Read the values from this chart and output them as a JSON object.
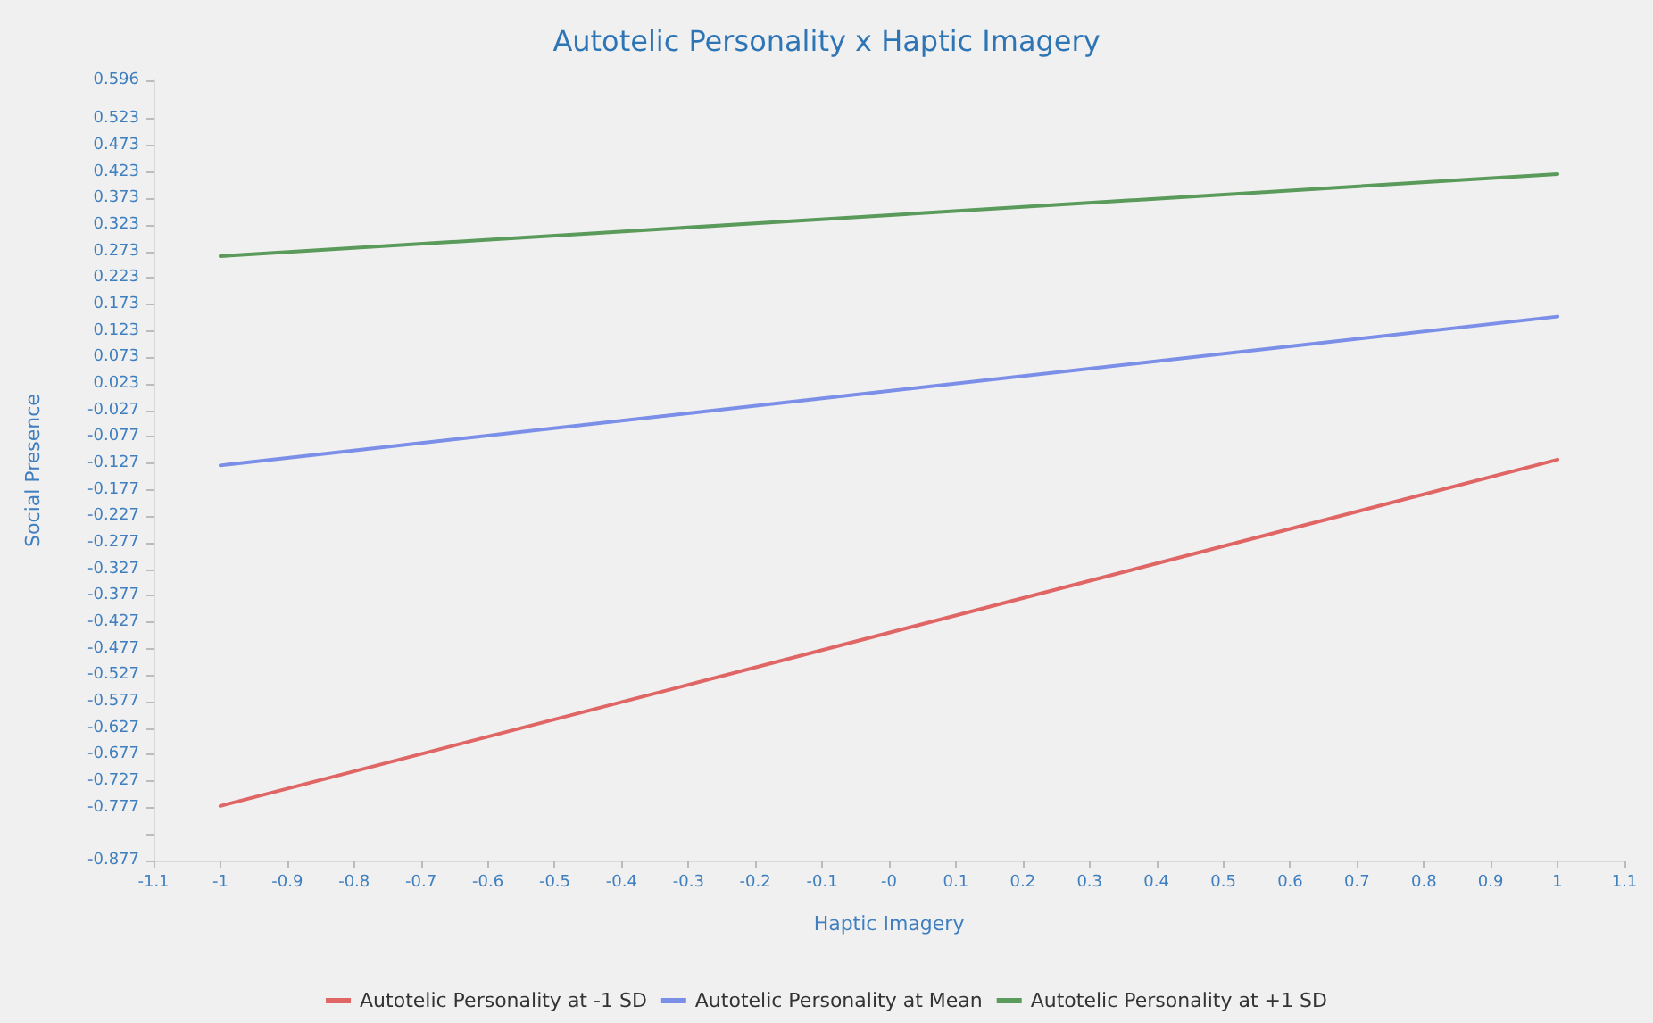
{
  "chart_data": {
    "type": "line",
    "title": "Autotelic Personality x Haptic Imagery",
    "xlabel": "Haptic Imagery",
    "ylabel": "Social Presence",
    "x": [
      -1,
      1
    ],
    "series": [
      {
        "name": "Autotelic Personality at -1 SD",
        "color": "#e06666",
        "values": [
          -0.774,
          -0.12
        ]
      },
      {
        "name": "Autotelic Personality at Mean",
        "color": "#7b8ee8",
        "values": [
          -0.131,
          0.15
        ]
      },
      {
        "name": "Autotelic Personality at +1 SD",
        "color": "#5a9a5a",
        "values": [
          0.264,
          0.419
        ]
      }
    ],
    "xlim": [
      -1.1,
      1.1
    ],
    "xticks": [
      -1.1,
      -1,
      -0.9,
      -0.8,
      -0.7,
      -0.6,
      -0.5,
      -0.4,
      -0.3,
      -0.2,
      -0.1,
      {
        "value": 0,
        "label": "-0"
      },
      0.1,
      0.2,
      0.3,
      0.4,
      0.5,
      0.6,
      0.7,
      0.8,
      0.9,
      1,
      1.1
    ],
    "ylim": [
      -0.877,
      0.596
    ],
    "yticks": [
      -0.877,
      {
        "value": -0.827,
        "label": null
      },
      -0.777,
      -0.727,
      -0.677,
      -0.627,
      -0.577,
      -0.527,
      -0.477,
      -0.427,
      -0.377,
      -0.327,
      -0.277,
      -0.227,
      -0.177,
      -0.127,
      -0.077,
      -0.027,
      0.023,
      0.073,
      0.123,
      0.173,
      0.223,
      0.273,
      0.323,
      0.373,
      0.423,
      0.473,
      0.523,
      0.596
    ],
    "grid": false,
    "legend": "bottom",
    "marker": "none",
    "line_style": "solid"
  }
}
